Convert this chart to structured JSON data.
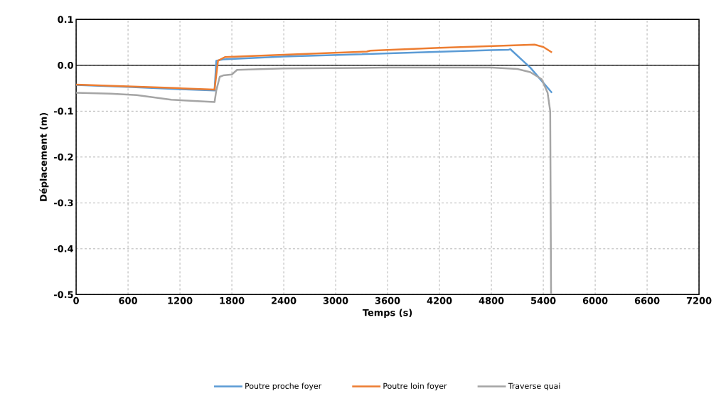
{
  "chart_data": {
    "type": "line",
    "xlabel": "Temps (s)",
    "ylabel": "Déplacement (m)",
    "xlim": [
      0,
      7200
    ],
    "xticks": [
      0,
      600,
      1200,
      1800,
      2400,
      3000,
      3600,
      4200,
      4800,
      5400,
      6000,
      6600,
      7200
    ],
    "ylim": [
      -0.5,
      0.1
    ],
    "yticks": [
      {
        "value": -0.5,
        "label": "-0.5"
      },
      {
        "value": -0.4,
        "label": "-0.4"
      },
      {
        "value": -0.3,
        "label": "-0.3"
      },
      {
        "value": -0.2,
        "label": "-0.2"
      },
      {
        "value": -0.1,
        "label": "-0.1"
      },
      {
        "value": 0,
        "label": "0.0"
      },
      {
        "value": 0.1,
        "label": "0.1"
      }
    ],
    "grid": true,
    "legend": "bottom",
    "marker": "none",
    "line_style": "solid",
    "ref_lines": [
      {
        "axis": "y",
        "value": 0,
        "color": "#000000"
      }
    ],
    "series": [
      {
        "name": "Poutre proche foyer",
        "color": "#5b9bd5",
        "x": [
          0,
          600,
          1200,
          1600,
          1620,
          1700,
          2400,
          3600,
          4800,
          5000,
          5020,
          5250,
          5500
        ],
        "values": [
          -0.043,
          -0.047,
          -0.052,
          -0.055,
          0.01,
          0.013,
          0.019,
          0.026,
          0.033,
          0.034,
          0.035,
          -0.005,
          -0.06
        ]
      },
      {
        "name": "Poutre loin foyer",
        "color": "#ed7d31",
        "x": [
          0,
          600,
          1200,
          1600,
          1640,
          1720,
          2400,
          3360,
          3400,
          4200,
          5000,
          5300,
          5400,
          5500
        ],
        "values": [
          -0.042,
          -0.046,
          -0.05,
          -0.053,
          0.01,
          0.018,
          0.023,
          0.03,
          0.032,
          0.038,
          0.043,
          0.045,
          0.04,
          0.028
        ]
      },
      {
        "name": "Traverse quai",
        "color": "#a5a5a5",
        "x": [
          0,
          400,
          700,
          1100,
          1600,
          1620,
          1660,
          1700,
          1800,
          1860,
          2400,
          3600,
          4800,
          5100,
          5250,
          5380,
          5450,
          5480,
          5490
        ],
        "values": [
          -0.06,
          -0.062,
          -0.065,
          -0.075,
          -0.08,
          -0.055,
          -0.025,
          -0.022,
          -0.02,
          -0.01,
          -0.007,
          -0.005,
          -0.005,
          -0.008,
          -0.015,
          -0.03,
          -0.06,
          -0.1,
          -0.5
        ]
      }
    ]
  }
}
